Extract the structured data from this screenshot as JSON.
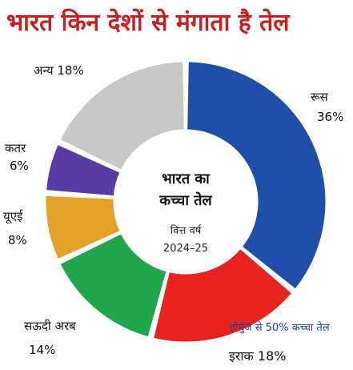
{
  "chart_data": {
    "type": "pie",
    "title": "भारत किन देशों से मंगाता है तेल",
    "center": {
      "line1": "भारत का",
      "line2": "कच्चा तेल",
      "line3": "वित्त वर्ष",
      "line4": "2024–25"
    },
    "slices": [
      {
        "name": "रूस",
        "value": 36,
        "label": "36%",
        "color": "#1f4ea8"
      },
      {
        "name": "इराक",
        "value": 18,
        "label": "18%",
        "color": "#e8231f"
      },
      {
        "name": "सऊदी अरब",
        "value": 14,
        "label": "14%",
        "color": "#22a64b"
      },
      {
        "name": "यूएई",
        "value": 8,
        "label": "8%",
        "color": "#e3a22a"
      },
      {
        "name": "कतर",
        "value": 6,
        "label": "6%",
        "color": "#5a3aa5"
      },
      {
        "name": "अन्य",
        "value": 18,
        "label": "18%",
        "color": "#c8c8c8"
      }
    ],
    "annotation": "होर्मुज से 50% कच्चा तेल"
  }
}
